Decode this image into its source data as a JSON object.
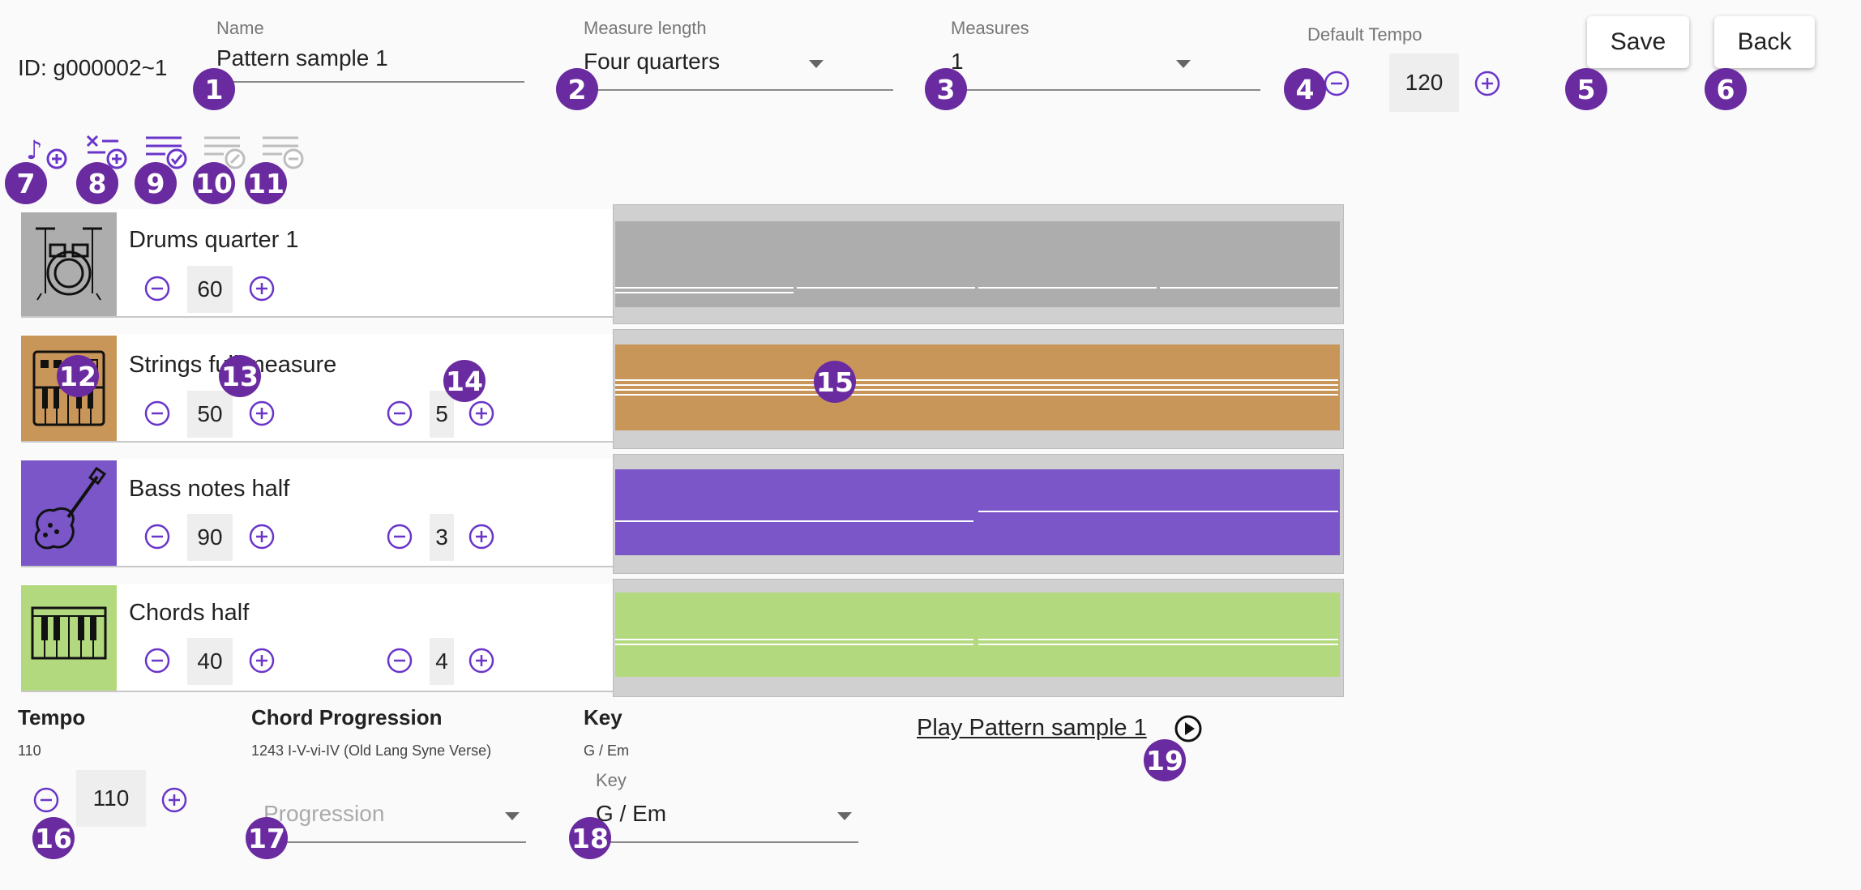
{
  "header": {
    "id_text": "ID: g000002~1",
    "name_label": "Name",
    "name_value": "Pattern sample 1",
    "measure_length_label": "Measure length",
    "measure_length_value": "Four quarters",
    "measures_label": "Measures",
    "measures_value": "1",
    "default_tempo_label": "Default Tempo",
    "default_tempo_value": "120",
    "save_label": "Save",
    "back_label": "Back"
  },
  "toolbar": {
    "icons": [
      "add-note-track-icon",
      "add-drum-track-icon",
      "select-all-icon",
      "edit-track-icon",
      "remove-track-icon"
    ]
  },
  "tracks": [
    {
      "name": "Drums quarter 1",
      "volume": "60",
      "color": "#adadad",
      "icon": "drum-kit-icon"
    },
    {
      "name": "Strings full measure",
      "volume": "50",
      "octave": "5",
      "color": "#c9965a",
      "icon": "synth-icon"
    },
    {
      "name": "Bass notes half",
      "volume": "90",
      "octave": "3",
      "color": "#7a56c8",
      "icon": "guitar-icon"
    },
    {
      "name": "Chords half",
      "volume": "40",
      "octave": "4",
      "color": "#b3d97e",
      "icon": "piano-icon"
    }
  ],
  "footer": {
    "tempo_label": "Tempo",
    "tempo_value_small": "110",
    "tempo_value": "110",
    "chord_label": "Chord Progression",
    "chord_value": "1243 I-V-vi-IV (Old Lang Syne Verse)",
    "progression_placeholder": "Progression",
    "key_label": "Key",
    "key_value_small": "G / Em",
    "key_select_label": "Key",
    "key_value": "G / Em",
    "play_link": "Play Pattern sample 1"
  },
  "badges": [
    "1",
    "2",
    "3",
    "4",
    "5",
    "6",
    "7",
    "8",
    "9",
    "10",
    "11",
    "12",
    "13",
    "14",
    "15",
    "16",
    "17",
    "18",
    "19"
  ],
  "colors": {
    "accent": "#6a2ba0",
    "icon_purple": "#6a35c9"
  }
}
